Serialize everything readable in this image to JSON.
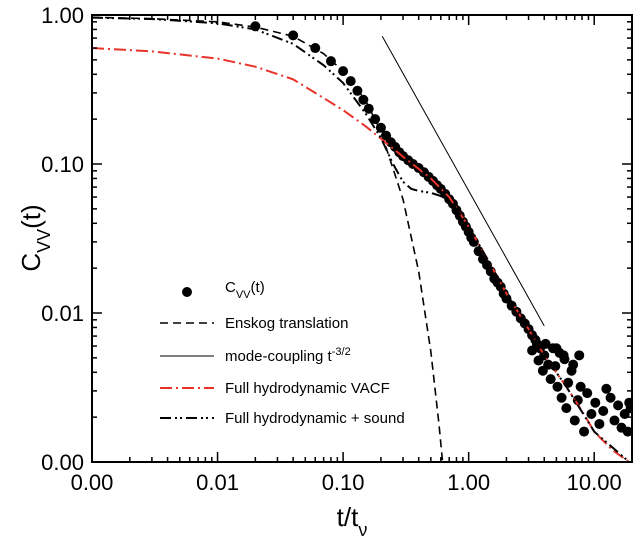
{
  "chart_data": {
    "type": "scatter",
    "x_scale": "log",
    "y_scale": "log",
    "xlim": [
      0.001,
      20
    ],
    "ylim": [
      0.001,
      1
    ],
    "grid": false,
    "legend_position": "bottom-left",
    "xlabel": {
      "main": "t/t",
      "sub": "ν"
    },
    "ylabel": {
      "main": "C",
      "sub": "VV",
      "suffix": "(t)"
    },
    "x_ticks": [
      {
        "value": 0.001,
        "label": "0.00"
      },
      {
        "value": 0.01,
        "label": "0.01"
      },
      {
        "value": 0.1,
        "label": "0.10"
      },
      {
        "value": 1,
        "label": "1.00"
      },
      {
        "value": 10,
        "label": "10.00"
      }
    ],
    "y_ticks": [
      {
        "value": 0.001,
        "label": "0.00"
      },
      {
        "value": 0.01,
        "label": "0.01"
      },
      {
        "value": 0.1,
        "label": "0.10"
      },
      {
        "value": 1,
        "label": "1.00"
      }
    ],
    "series": [
      {
        "id": "cvv-data",
        "legend": {
          "main": "C",
          "sub": "VV",
          "suffix": "(t)"
        },
        "kind": "markers",
        "color": "#000000",
        "points": [
          [
            0.02,
            0.84
          ],
          [
            0.04,
            0.73
          ],
          [
            0.06,
            0.6
          ],
          [
            0.08,
            0.49
          ],
          [
            0.1,
            0.42
          ],
          [
            0.115,
            0.36
          ],
          [
            0.13,
            0.31
          ],
          [
            0.145,
            0.27
          ],
          [
            0.16,
            0.235
          ],
          [
            0.18,
            0.2
          ],
          [
            0.2,
            0.175
          ],
          [
            0.22,
            0.155
          ],
          [
            0.24,
            0.14
          ],
          [
            0.26,
            0.13
          ],
          [
            0.28,
            0.12
          ],
          [
            0.3,
            0.113
          ],
          [
            0.33,
            0.106
          ],
          [
            0.36,
            0.1
          ],
          [
            0.4,
            0.094
          ],
          [
            0.44,
            0.088
          ],
          [
            0.48,
            0.082
          ],
          [
            0.52,
            0.077
          ],
          [
            0.56,
            0.072
          ],
          [
            0.6,
            0.068
          ],
          [
            0.65,
            0.063
          ],
          [
            0.7,
            0.058
          ],
          [
            0.75,
            0.054
          ],
          [
            0.8,
            0.049
          ],
          [
            0.85,
            0.045
          ],
          [
            0.9,
            0.041
          ],
          [
            0.95,
            0.038
          ],
          [
            1.0,
            0.035
          ],
          [
            1.05,
            0.032
          ],
          [
            1.1,
            0.03
          ],
          [
            1.2,
            0.026
          ],
          [
            1.3,
            0.023
          ],
          [
            1.4,
            0.021
          ],
          [
            1.5,
            0.019
          ],
          [
            1.6,
            0.017
          ],
          [
            1.7,
            0.016
          ],
          [
            1.8,
            0.015
          ],
          [
            1.9,
            0.0135
          ],
          [
            2.0,
            0.0125
          ],
          [
            2.2,
            0.0112
          ],
          [
            2.4,
            0.0102
          ],
          [
            2.6,
            0.0092
          ],
          [
            2.8,
            0.0085
          ],
          [
            3.0,
            0.0078
          ],
          [
            3.2,
            0.0071
          ],
          [
            3.4,
            0.0066
          ],
          [
            3.2,
            0.0056
          ],
          [
            3.5,
            0.0062
          ],
          [
            3.6,
            0.0048
          ],
          [
            3.7,
            0.0058
          ],
          [
            3.9,
            0.0041
          ],
          [
            4.0,
            0.0052
          ],
          [
            4.1,
            0.0062
          ],
          [
            4.3,
            0.0045
          ],
          [
            4.5,
            0.0036
          ],
          [
            4.7,
            0.0058
          ],
          [
            4.9,
            0.0044
          ],
          [
            5.1,
            0.0032
          ],
          [
            5.3,
            0.0054
          ],
          [
            5.5,
            0.0027
          ],
          [
            5.8,
            0.0049
          ],
          [
            6.0,
            0.0023
          ],
          [
            6.2,
            0.0034
          ],
          [
            6.6,
            0.0041
          ],
          [
            7.0,
            0.0019
          ],
          [
            7.4,
            0.0026
          ],
          [
            7.8,
            0.0032
          ],
          [
            8.3,
            0.0016
          ],
          [
            8.8,
            0.0029
          ],
          [
            9.5,
            0.0021
          ],
          [
            10.2,
            0.0025
          ],
          [
            11.0,
            0.0018
          ],
          [
            11.8,
            0.0022
          ],
          [
            12.5,
            0.0031
          ],
          [
            13.5,
            0.0027
          ],
          [
            14.5,
            0.0019
          ],
          [
            15.5,
            0.0024
          ],
          [
            16.5,
            0.0017
          ],
          [
            17.5,
            0.0021
          ],
          [
            18.5,
            0.0016
          ],
          [
            19.0,
            0.0025
          ],
          [
            19.5,
            0.0023
          ],
          [
            5.0,
            0.0058
          ],
          [
            5.7,
            0.0052
          ],
          [
            6.8,
            0.0045
          ],
          [
            7.6,
            0.0052
          ]
        ]
      },
      {
        "id": "enskog",
        "legend": {
          "main": "Enskog translation"
        },
        "kind": "line",
        "dash": "8,5",
        "color": "#000000",
        "width": 1.6,
        "points": [
          [
            0.001,
            0.965
          ],
          [
            0.003,
            0.945
          ],
          [
            0.01,
            0.9
          ],
          [
            0.02,
            0.83
          ],
          [
            0.04,
            0.72
          ],
          [
            0.07,
            0.55
          ],
          [
            0.1,
            0.42
          ],
          [
            0.15,
            0.27
          ],
          [
            0.2,
            0.165
          ],
          [
            0.3,
            0.058
          ],
          [
            0.4,
            0.019
          ],
          [
            0.5,
            0.0055
          ],
          [
            0.58,
            0.0018
          ],
          [
            0.62,
            0.001
          ]
        ]
      },
      {
        "id": "mode-coupling",
        "legend": {
          "main": "mode-coupling t",
          "sup": "-3/2"
        },
        "kind": "line",
        "dash": "",
        "color": "#000000",
        "width": 1.0,
        "points": [
          [
            0.205,
            0.72
          ],
          [
            4.0,
            0.0082
          ]
        ]
      },
      {
        "id": "full-vacf",
        "legend": {
          "main": "Full hydrodynamic VACF"
        },
        "kind": "line",
        "dash": "12,4,2,4",
        "color": "#e8322a",
        "width": 2.0,
        "points": [
          [
            0.001,
            0.6
          ],
          [
            0.003,
            0.57
          ],
          [
            0.01,
            0.51
          ],
          [
            0.02,
            0.45
          ],
          [
            0.04,
            0.37
          ],
          [
            0.06,
            0.3
          ],
          [
            0.1,
            0.23
          ],
          [
            0.15,
            0.18
          ],
          [
            0.2,
            0.148
          ],
          [
            0.3,
            0.112
          ],
          [
            0.5,
            0.08
          ],
          [
            0.7,
            0.06
          ],
          [
            1.0,
            0.038
          ],
          [
            1.5,
            0.021
          ],
          [
            2.0,
            0.0135
          ],
          [
            3.0,
            0.0078
          ],
          [
            4.0,
            0.0052
          ],
          [
            6.0,
            0.0032
          ],
          [
            8.0,
            0.0022
          ],
          [
            10.0,
            0.0016
          ],
          [
            14.0,
            0.0012
          ],
          [
            19.0,
            0.001
          ]
        ]
      },
      {
        "id": "full-sound",
        "legend": {
          "main": "Full hydrodynamic + sound"
        },
        "kind": "line",
        "dash": "11,4,2,3,2,4",
        "color": "#000000",
        "width": 2.0,
        "points": [
          [
            0.001,
            0.96
          ],
          [
            0.003,
            0.94
          ],
          [
            0.01,
            0.88
          ],
          [
            0.02,
            0.8
          ],
          [
            0.04,
            0.64
          ],
          [
            0.07,
            0.46
          ],
          [
            0.1,
            0.35
          ],
          [
            0.15,
            0.22
          ],
          [
            0.2,
            0.15
          ],
          [
            0.25,
            0.1
          ],
          [
            0.3,
            0.076
          ],
          [
            0.35,
            0.068
          ],
          [
            0.4,
            0.066
          ],
          [
            0.5,
            0.064
          ],
          [
            0.6,
            0.061
          ],
          [
            0.7,
            0.056
          ],
          [
            0.8,
            0.05
          ],
          [
            1.0,
            0.038
          ],
          [
            1.5,
            0.021
          ],
          [
            2.0,
            0.0135
          ],
          [
            3.0,
            0.0078
          ],
          [
            4.0,
            0.0052
          ],
          [
            6.0,
            0.0032
          ],
          [
            10.0,
            0.0016
          ],
          [
            19.0,
            0.001
          ]
        ]
      }
    ]
  }
}
